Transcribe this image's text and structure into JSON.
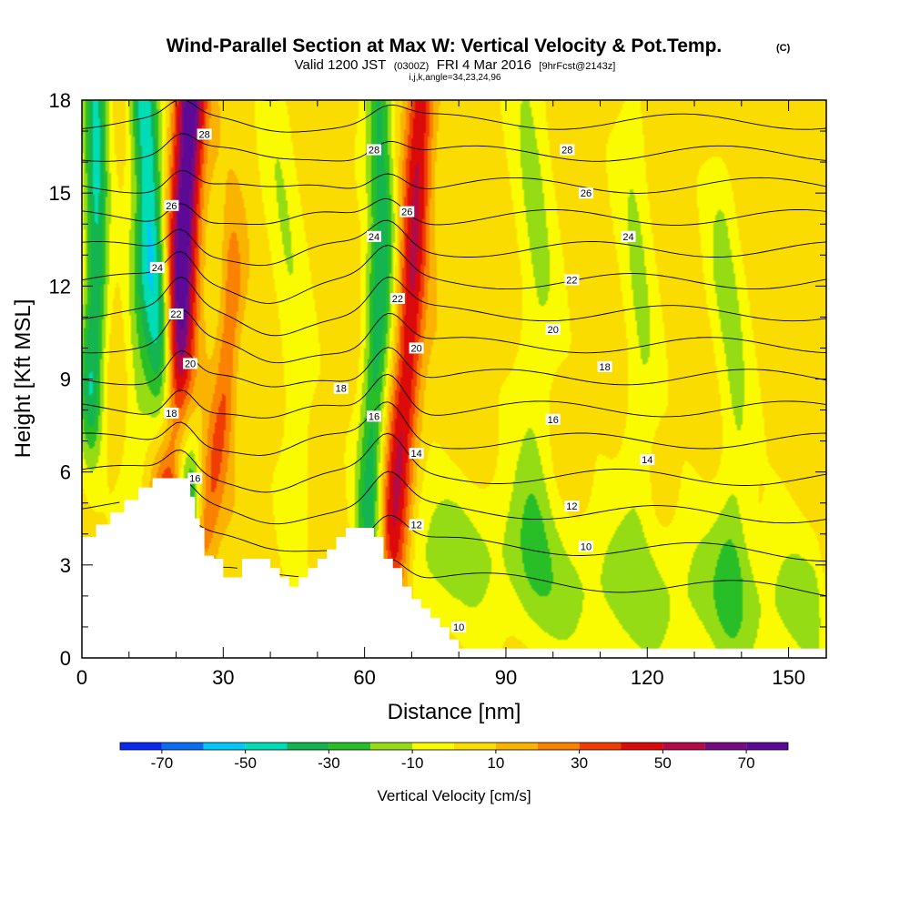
{
  "chart_data": {
    "type": "heatmap",
    "title": "Wind-Parallel Section at Max W: Vertical Velocity & Pot.Temp.",
    "title_mark": "(C)",
    "subtitle": {
      "main_a": "Valid 1200 JST",
      "utc": "(0300Z)",
      "main_b": "FRI 4 Mar 2016",
      "fcst": "[9hrFcst@2143z]"
    },
    "index_line": "i,j,k,angle=34,23,24,96",
    "xlabel": "Distance [nm]",
    "ylabel": "Height [Kft MSL]",
    "xlim": [
      0,
      158
    ],
    "ylim": [
      0,
      18
    ],
    "x_ticks": [
      "0",
      "30",
      "60",
      "90",
      "120",
      "150"
    ],
    "y_ticks": [
      "0",
      "3",
      "6",
      "9",
      "12",
      "15",
      "18"
    ],
    "colorbar": {
      "label": "Vertical Velocity [cm/s]",
      "levels": [
        -80,
        -70,
        -60,
        -50,
        -40,
        -30,
        -20,
        -10,
        0,
        10,
        20,
        30,
        40,
        50,
        60,
        70,
        80
      ],
      "colors": [
        "#0a28f0",
        "#0a6ef5",
        "#00c8fa",
        "#00dcb4",
        "#14b450",
        "#28be28",
        "#96dc14",
        "#fafa00",
        "#fadc00",
        "#fab400",
        "#fa8200",
        "#f03c00",
        "#dc0a0a",
        "#b40a46",
        "#780a82",
        "#5a0a96"
      ],
      "tick_labels": [
        "-70",
        "-50",
        "-30",
        "-10",
        "10",
        "30",
        "50",
        "70"
      ]
    },
    "background_value": 5,
    "features": [
      {
        "type": "updraft",
        "peak": 75,
        "path": [
          [
            19,
            5.5
          ],
          [
            20,
            9
          ],
          [
            21,
            12
          ],
          [
            22,
            15
          ],
          [
            23,
            18
          ]
        ],
        "width": 2.2
      },
      {
        "type": "downdraft",
        "peak": -55,
        "path": [
          [
            22,
            5
          ],
          [
            19,
            7.5
          ],
          [
            17,
            10
          ],
          [
            15,
            13
          ],
          [
            14,
            16
          ],
          [
            13,
            18
          ]
        ],
        "width": 2
      },
      {
        "type": "downdraft",
        "peak": -45,
        "path": [
          [
            2,
            9
          ],
          [
            3,
            12
          ],
          [
            3,
            15
          ],
          [
            3,
            18
          ]
        ],
        "width": 1.8
      },
      {
        "type": "updraft",
        "peak": 25,
        "path": [
          [
            26,
            4
          ],
          [
            28,
            6
          ],
          [
            30,
            8
          ],
          [
            31,
            10
          ],
          [
            32,
            12
          ]
        ],
        "width": 1.5
      },
      {
        "type": "updraft",
        "peak": 45,
        "path": [
          [
            66,
            4.5
          ],
          [
            67,
            6
          ],
          [
            69,
            9
          ],
          [
            70,
            12
          ],
          [
            71,
            15
          ],
          [
            72,
            18
          ]
        ],
        "width": 2
      },
      {
        "type": "downdraft",
        "peak": -40,
        "path": [
          [
            61,
            5
          ],
          [
            62,
            8
          ],
          [
            63,
            11
          ],
          [
            64,
            14
          ],
          [
            63,
            18
          ]
        ],
        "width": 2
      },
      {
        "type": "sink",
        "peak": -18,
        "path": [
          [
            72,
            3
          ],
          [
            80,
            3.5
          ],
          [
            90,
            3.2
          ],
          [
            100,
            2.5
          ],
          [
            110,
            2.2
          ],
          [
            120,
            2
          ],
          [
            130,
            2
          ],
          [
            140,
            1.8
          ],
          [
            155,
            1.5
          ]
        ],
        "width": 1.8
      },
      {
        "type": "sink",
        "peak": -15,
        "path": [
          [
            96,
            6
          ],
          [
            96,
            9
          ],
          [
            97,
            12
          ],
          [
            96,
            15
          ],
          [
            95,
            18
          ]
        ],
        "width": 3
      },
      {
        "type": "sink",
        "peak": -14,
        "path": [
          [
            118,
            7
          ],
          [
            119,
            10
          ],
          [
            118,
            13
          ],
          [
            117,
            16
          ]
        ],
        "width": 2.5
      },
      {
        "type": "sink",
        "peak": -16,
        "path": [
          [
            138,
            4
          ],
          [
            139,
            7
          ],
          [
            138,
            10
          ],
          [
            136,
            13
          ]
        ],
        "width": 2.5
      },
      {
        "type": "sink",
        "peak": -12,
        "path": [
          [
            46,
            6
          ],
          [
            45,
            9
          ],
          [
            44,
            12
          ],
          [
            42,
            16
          ]
        ],
        "width": 2.5
      },
      {
        "type": "sink",
        "peak": -15,
        "path": [
          [
            10,
            3
          ],
          [
            11,
            6
          ],
          [
            12,
            9
          ],
          [
            12,
            12
          ]
        ],
        "width": 2
      }
    ],
    "terrain": [
      [
        0,
        3.9
      ],
      [
        3,
        4.3
      ],
      [
        6,
        4.7
      ],
      [
        9,
        5.1
      ],
      [
        12,
        5.5
      ],
      [
        15,
        5.8
      ],
      [
        18,
        5.8
      ],
      [
        21,
        5.8
      ],
      [
        23,
        5.2
      ],
      [
        24,
        4.5
      ],
      [
        25,
        4.2
      ],
      [
        26,
        3.3
      ],
      [
        28,
        3.2
      ],
      [
        30,
        2.6
      ],
      [
        32,
        2.6
      ],
      [
        34,
        3.2
      ],
      [
        38,
        3.2
      ],
      [
        40,
        2.9
      ],
      [
        42,
        2.6
      ],
      [
        44,
        2.3
      ],
      [
        46,
        2.6
      ],
      [
        48,
        2.9
      ],
      [
        50,
        3.2
      ],
      [
        52,
        3.5
      ],
      [
        54,
        3.9
      ],
      [
        56,
        4.2
      ],
      [
        60,
        4.2
      ],
      [
        62,
        3.9
      ],
      [
        64,
        3.2
      ],
      [
        66,
        2.9
      ],
      [
        68,
        2.3
      ],
      [
        70,
        1.9
      ],
      [
        72,
        1.6
      ],
      [
        74,
        1.3
      ],
      [
        76,
        1.0
      ],
      [
        78,
        0.6
      ],
      [
        80,
        0.3
      ],
      [
        84,
        0.3
      ]
    ],
    "isentropes": {
      "levels": [
        10,
        11,
        12,
        13,
        14,
        15,
        16,
        17,
        18,
        19,
        20,
        21,
        22,
        23,
        24,
        25,
        26,
        27,
        28,
        29,
        30
      ],
      "label_every": 2,
      "labels": [
        {
          "text": "28",
          "x": 26,
          "y": 16.9
        },
        {
          "text": "26",
          "x": 19,
          "y": 14.6
        },
        {
          "text": "24",
          "x": 16,
          "y": 12.6
        },
        {
          "text": "22",
          "x": 20,
          "y": 11.1
        },
        {
          "text": "20",
          "x": 23,
          "y": 9.5
        },
        {
          "text": "18",
          "x": 19,
          "y": 7.9
        },
        {
          "text": "16",
          "x": 24,
          "y": 5.8
        },
        {
          "text": "28",
          "x": 62,
          "y": 16.4
        },
        {
          "text": "26",
          "x": 69,
          "y": 14.4
        },
        {
          "text": "24",
          "x": 62,
          "y": 13.6
        },
        {
          "text": "22",
          "x": 67,
          "y": 11.6
        },
        {
          "text": "20",
          "x": 71,
          "y": 10.0
        },
        {
          "text": "18",
          "x": 55,
          "y": 8.7
        },
        {
          "text": "16",
          "x": 62,
          "y": 7.8
        },
        {
          "text": "14",
          "x": 71,
          "y": 6.6
        },
        {
          "text": "12",
          "x": 71,
          "y": 4.3
        },
        {
          "text": "10",
          "x": 80,
          "y": 1.0
        },
        {
          "text": "28",
          "x": 103,
          "y": 16.4
        },
        {
          "text": "26",
          "x": 107,
          "y": 15.0
        },
        {
          "text": "24",
          "x": 116,
          "y": 13.6
        },
        {
          "text": "22",
          "x": 104,
          "y": 12.2
        },
        {
          "text": "20",
          "x": 100,
          "y": 10.6
        },
        {
          "text": "18",
          "x": 111,
          "y": 9.4
        },
        {
          "text": "16",
          "x": 100,
          "y": 7.7
        },
        {
          "text": "14",
          "x": 120,
          "y": 6.4
        },
        {
          "text": "12",
          "x": 104,
          "y": 4.9
        },
        {
          "text": "10",
          "x": 107,
          "y": 3.6
        }
      ]
    }
  }
}
